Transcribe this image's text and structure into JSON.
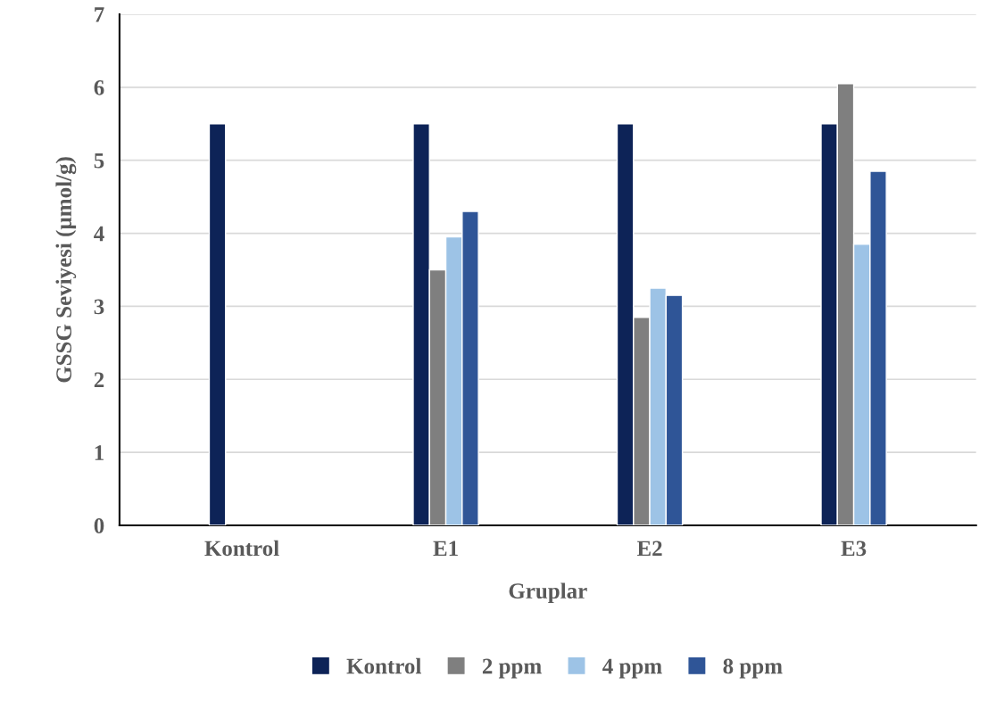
{
  "chart_data": {
    "type": "bar",
    "xlabel": "Gruplar",
    "ylabel": "GSSG Seviyesi (µmol/g)",
    "categories": [
      "Kontrol",
      "E1",
      "E2",
      "E3"
    ],
    "series": [
      {
        "name": "Kontrol",
        "color": "#0d2357",
        "values": [
          5.5,
          5.5,
          5.5,
          5.5
        ]
      },
      {
        "name": "2 ppm",
        "color": "#7f7f7f",
        "values": [
          null,
          3.5,
          2.85,
          6.05
        ]
      },
      {
        "name": "4 ppm",
        "color": "#9dc3e6",
        "values": [
          null,
          3.95,
          3.25,
          3.85
        ]
      },
      {
        "name": "8 ppm",
        "color": "#2f5597",
        "values": [
          null,
          4.3,
          3.15,
          4.85
        ]
      }
    ],
    "ylim": [
      0,
      7
    ],
    "yticks": [
      0,
      1,
      2,
      3,
      4,
      5,
      6,
      7
    ],
    "grid": "y",
    "legend": "bottom"
  }
}
